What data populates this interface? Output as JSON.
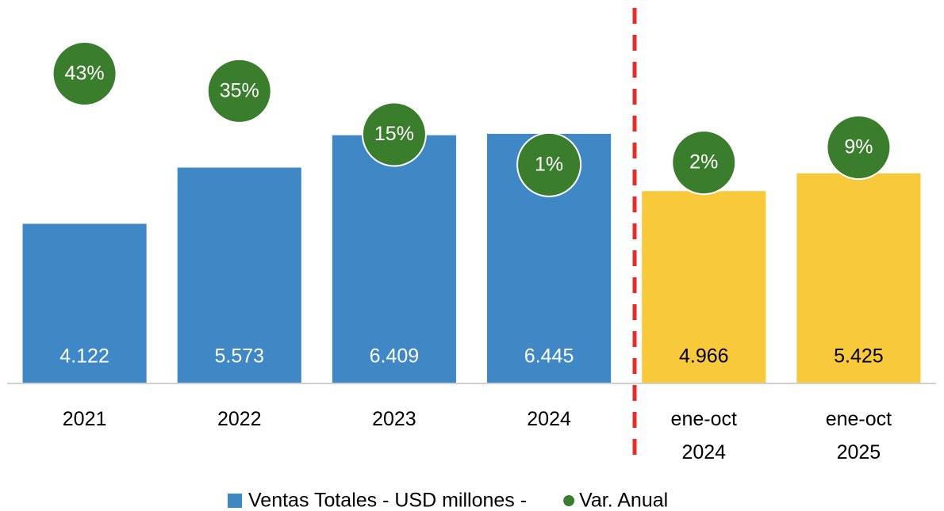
{
  "chart_data": {
    "type": "bar",
    "categories": [
      "2021",
      "2022",
      "2023",
      "2024",
      "ene-oct 2024",
      "ene-oct 2025"
    ],
    "ylim": [
      0,
      9900
    ],
    "y2lim": [
      -100,
      77
    ],
    "series": [
      {
        "name": "Ventas Totales - USD millones -",
        "type": "bar",
        "color": "#3f88c5",
        "colors": [
          "#3f88c5",
          "#3f88c5",
          "#3f88c5",
          "#3f88c5",
          "#f9c93c",
          "#f9c93c"
        ],
        "label_colors": [
          "#ffffff",
          "#ffffff",
          "#ffffff",
          "#ffffff",
          "#000000",
          "#000000"
        ],
        "values": [
          4122,
          5573,
          6409,
          6445,
          4966,
          5425
        ],
        "value_labels": [
          "4.122",
          "5.573",
          "6.409",
          "6.445",
          "4.966",
          "5.425"
        ]
      },
      {
        "name": "Var. Anual",
        "type": "scatter",
        "axis": "y2",
        "color": "#3a7d2c",
        "values": [
          43,
          35,
          15,
          1,
          2,
          9
        ],
        "value_labels": [
          "43%",
          "35%",
          "15%",
          "1%",
          "2%",
          "9%"
        ]
      }
    ]
  }
}
